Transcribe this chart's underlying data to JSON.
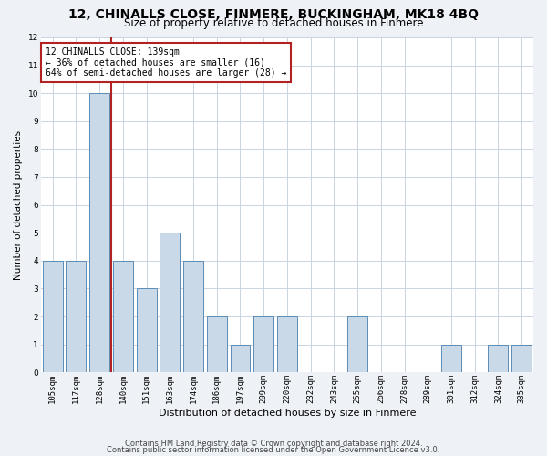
{
  "title1": "12, CHINALLS CLOSE, FINMERE, BUCKINGHAM, MK18 4BQ",
  "title2": "Size of property relative to detached houses in Finmere",
  "xlabel": "Distribution of detached houses by size in Finmere",
  "ylabel": "Number of detached properties",
  "categories": [
    "105sqm",
    "117sqm",
    "128sqm",
    "140sqm",
    "151sqm",
    "163sqm",
    "174sqm",
    "186sqm",
    "197sqm",
    "209sqm",
    "220sqm",
    "232sqm",
    "243sqm",
    "255sqm",
    "266sqm",
    "278sqm",
    "289sqm",
    "301sqm",
    "312sqm",
    "324sqm",
    "335sqm"
  ],
  "values": [
    4,
    4,
    10,
    4,
    3,
    5,
    4,
    2,
    1,
    2,
    2,
    0,
    0,
    2,
    0,
    0,
    0,
    1,
    0,
    1,
    1
  ],
  "bar_color": "#c9d9e8",
  "bar_edge_color": "#5b8db8",
  "subject_line_color": "#b22222",
  "annotation_line1": "12 CHINALLS CLOSE: 139sqm",
  "annotation_line2": "← 36% of detached houses are smaller (16)",
  "annotation_line3": "64% of semi-detached houses are larger (28) →",
  "annotation_box_color": "#ffffff",
  "annotation_box_edge": "#b22222",
  "ylim": [
    0,
    12
  ],
  "yticks": [
    0,
    1,
    2,
    3,
    4,
    5,
    6,
    7,
    8,
    9,
    10,
    11,
    12
  ],
  "footer1": "Contains HM Land Registry data © Crown copyright and database right 2024.",
  "footer2": "Contains public sector information licensed under the Open Government Licence v3.0.",
  "background_color": "#eef2f7",
  "plot_background": "#ffffff",
  "grid_color": "#c8d4e0",
  "title1_fontsize": 10,
  "title2_fontsize": 8.5,
  "ylabel_fontsize": 7.5,
  "xlabel_fontsize": 8,
  "tick_fontsize": 6.5,
  "footer_fontsize": 6,
  "annot_fontsize": 7
}
